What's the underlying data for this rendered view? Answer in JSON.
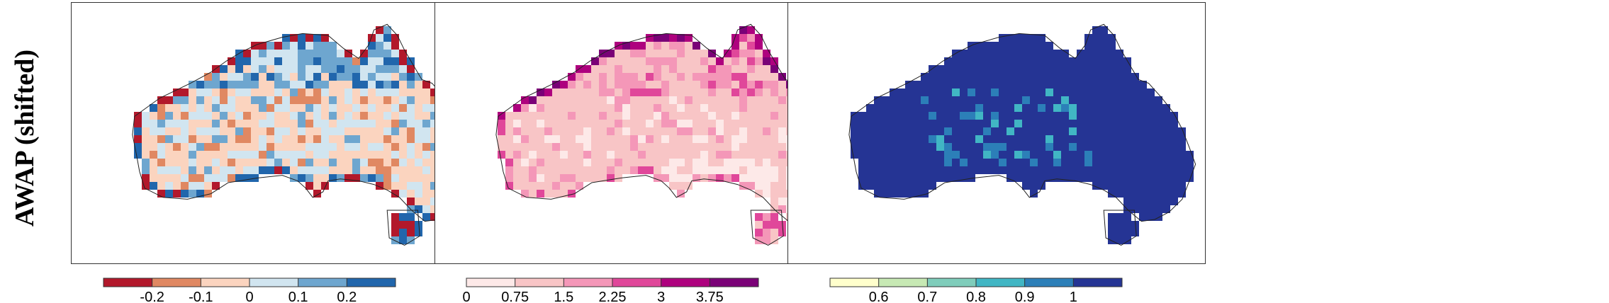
{
  "row_label": "AWAP (shifted)",
  "panels": [
    {
      "colors": [
        "#b2182b",
        "#e08862",
        "#fbd4bf",
        "#d1e5f0",
        "#6ea6cf",
        "#2166ac"
      ],
      "colorbar_ticks": [
        "-0.2",
        "-0.1",
        "0",
        "0.1",
        "0.2"
      ],
      "dominant": 2,
      "pattern": "diverging"
    },
    {
      "colors": [
        "#fde9e8",
        "#f8c5c6",
        "#f497b8",
        "#e0479a",
        "#ae017e",
        "#7a0177"
      ],
      "colorbar_ticks": [
        "0",
        "0.75",
        "1.5",
        "2.25",
        "3",
        "3.75"
      ],
      "dominant": 1,
      "pattern": "sequential"
    },
    {
      "colors": [
        "#ffffcc",
        "#c7e9b4",
        "#7fcdbb",
        "#41b6c4",
        "#2c7fb8",
        "#253494"
      ],
      "colorbar_ticks": [
        "0.6",
        "0.7",
        "0.8",
        "0.9",
        "1"
      ],
      "dominant": 5,
      "pattern": "high"
    }
  ]
}
